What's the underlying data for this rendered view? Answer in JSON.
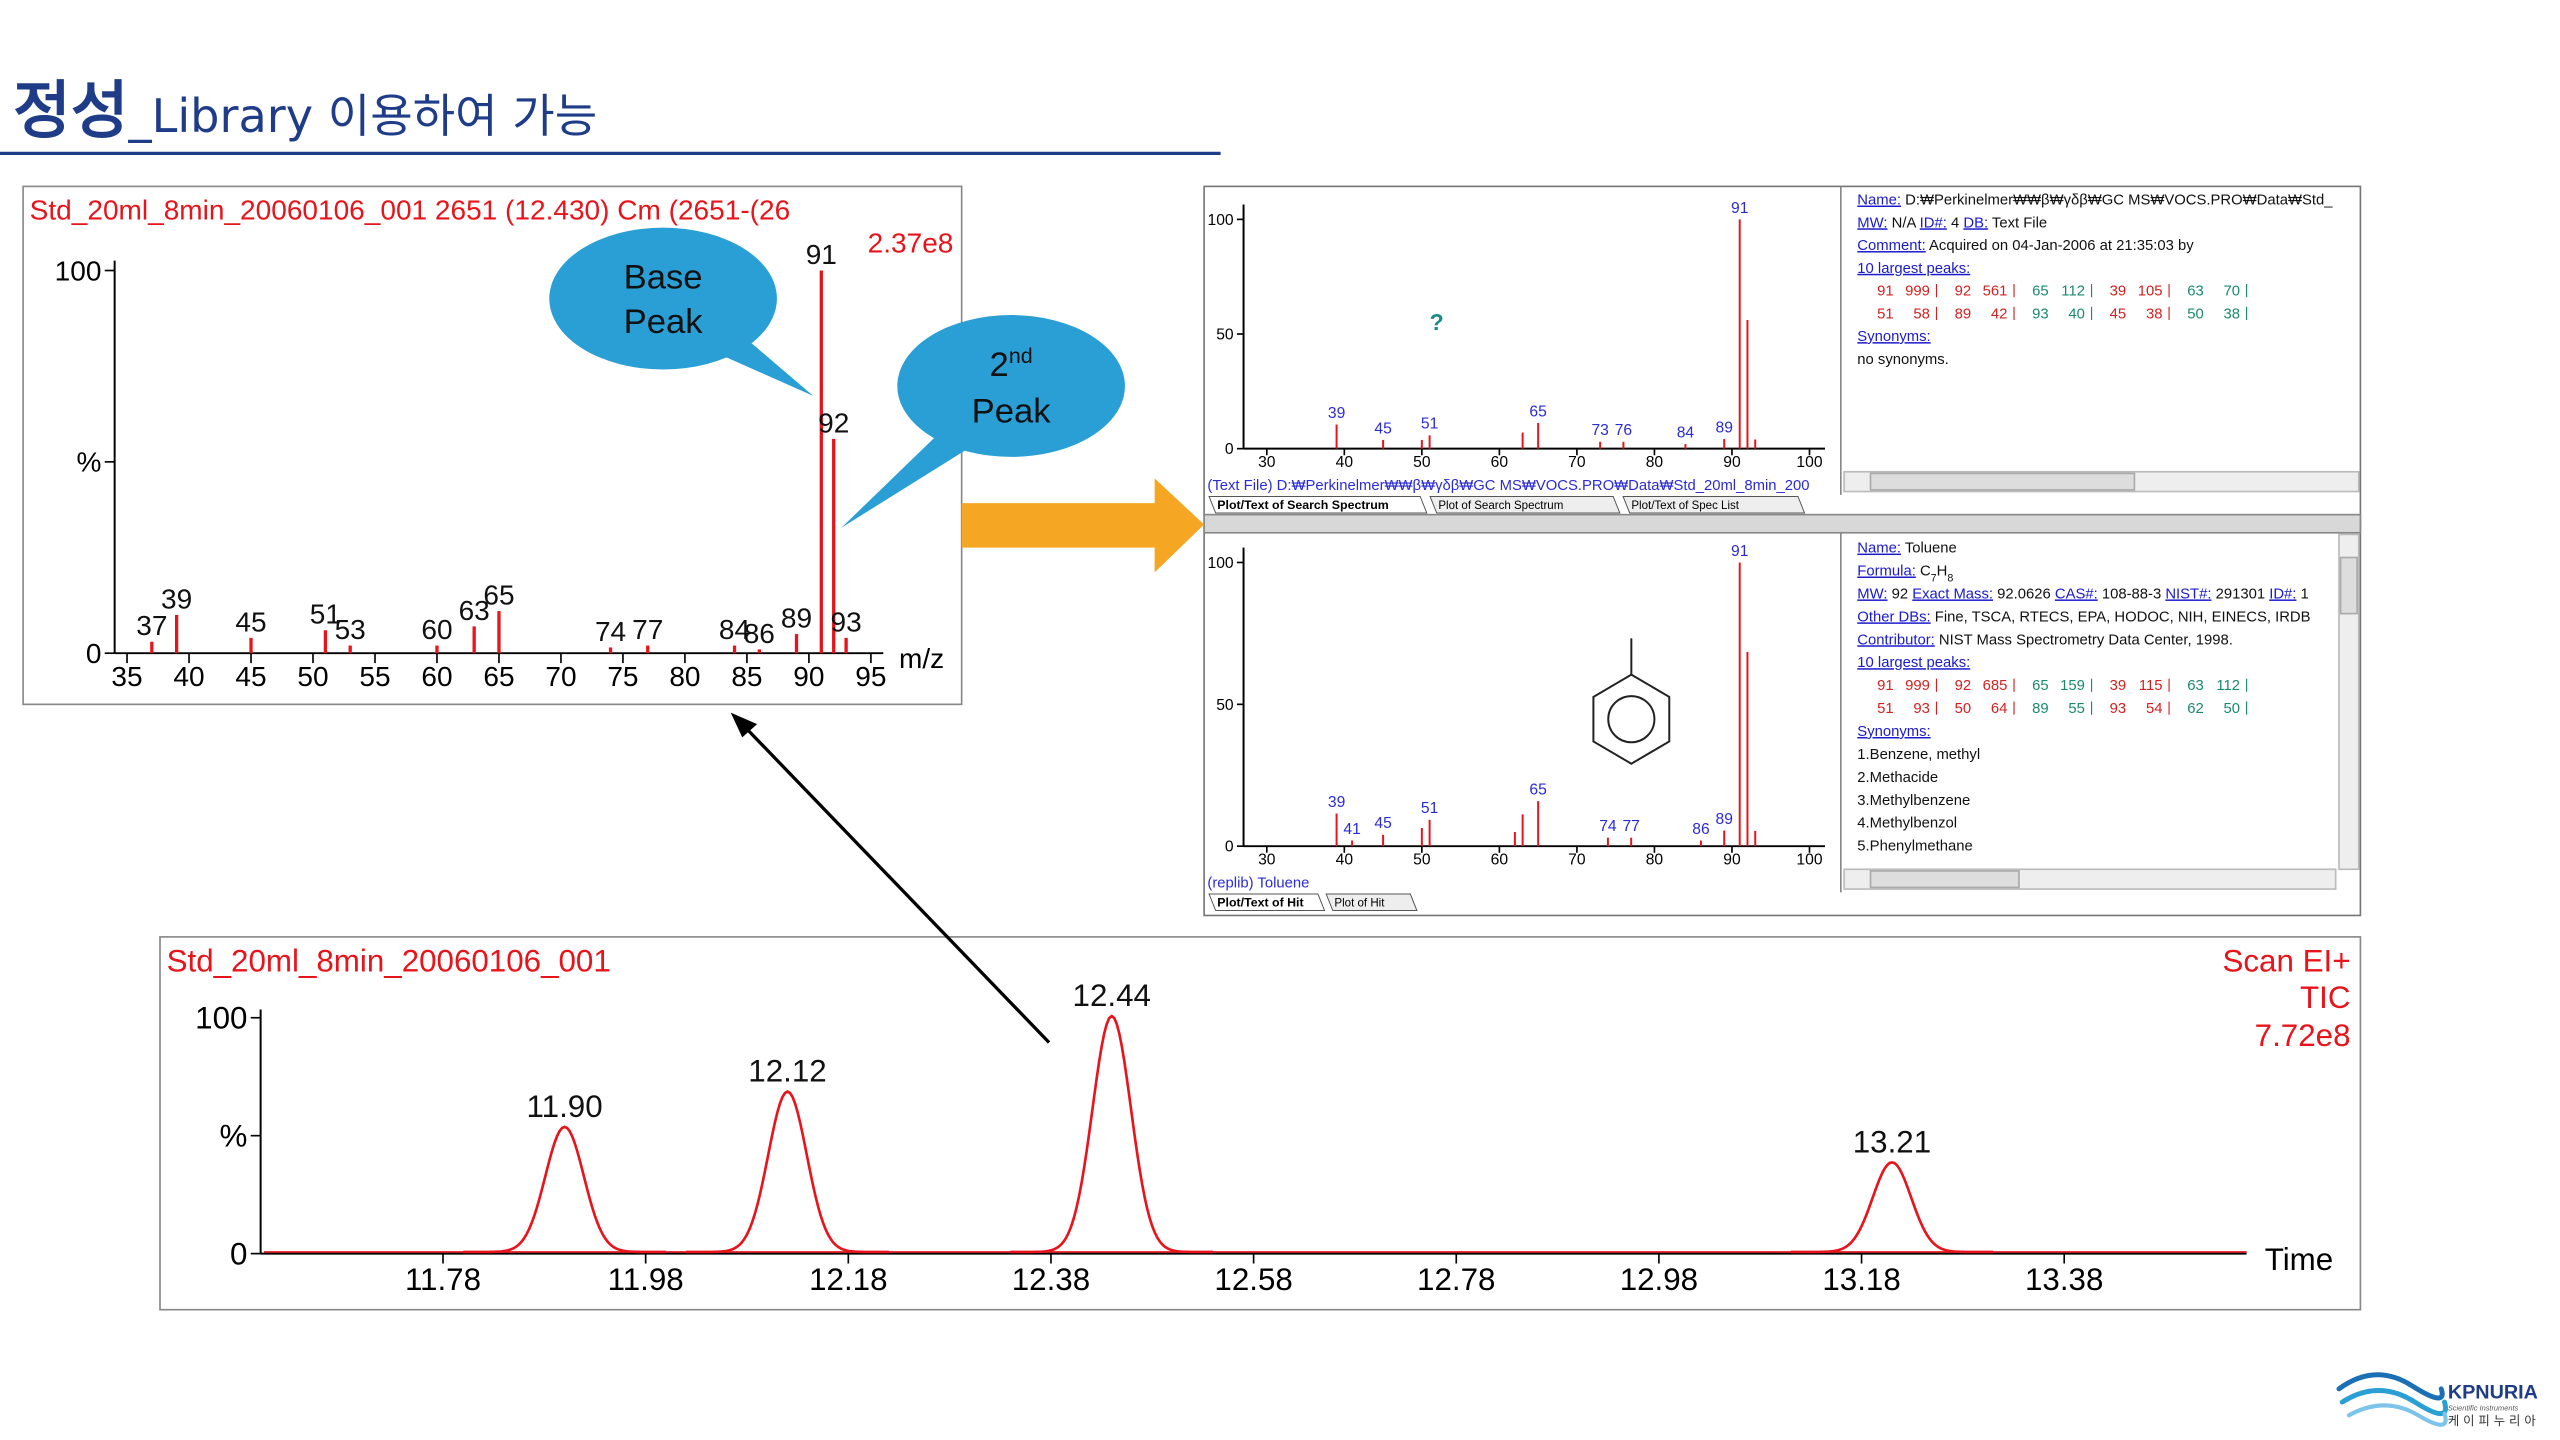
{
  "slide": {
    "title_main": "정성",
    "title_rest": "_Library 이용하여 가능"
  },
  "callouts": [
    {
      "lines": [
        "Base",
        "Peak"
      ]
    },
    {
      "number": "2",
      "sup": "nd",
      "line2": "Peak"
    }
  ],
  "chart_data": [
    {
      "type": "bar",
      "title": "Std_20ml_8min_20060106_001 2651 (12.430) Cm (2651-(26",
      "scale_label": "2.37e8",
      "x_label": "m/z",
      "color": "#e8141b",
      "x": [
        37,
        39,
        45,
        51,
        53,
        60,
        63,
        65,
        74,
        77,
        84,
        86,
        89,
        91,
        92,
        93
      ],
      "values": [
        3,
        10,
        4,
        6,
        2,
        2,
        7,
        11,
        1.5,
        2,
        2,
        1,
        5,
        100,
        56,
        4
      ],
      "xlim": [
        34,
        96
      ],
      "xticks": [
        35,
        40,
        45,
        50,
        55,
        60,
        65,
        70,
        75,
        80,
        85,
        90,
        95
      ],
      "ylim": [
        0,
        100
      ],
      "yticks": [
        0,
        {
          "value": 50,
          "label": "%"
        },
        100
      ]
    },
    {
      "type": "peak",
      "title": "Std_20ml_8min_20060106_001",
      "annotations": [
        "Scan EI+",
        "TIC",
        "7.72e8"
      ],
      "x_label": "Time",
      "color": "#e8141b",
      "x": [
        11.9,
        12.12,
        12.44,
        13.21
      ],
      "peak_labels": [
        "11.90",
        "12.12",
        "12.44",
        "13.21"
      ],
      "values": [
        53,
        68,
        100,
        38
      ],
      "xlim": [
        11.6,
        13.56
      ],
      "xticks": [
        11.78,
        11.98,
        12.18,
        12.38,
        12.58,
        12.78,
        12.98,
        13.18,
        13.38
      ],
      "ylim": [
        0,
        100
      ],
      "yticks": [
        0,
        {
          "value": 50,
          "label": "%"
        },
        100
      ]
    },
    {
      "type": "bar",
      "mark": "?",
      "color": "#e8141b",
      "label_color": "#2b2bd6",
      "x": [
        39,
        45,
        50,
        51,
        63,
        65,
        73,
        76,
        84,
        89,
        91,
        92,
        93
      ],
      "peak_labels": [
        "39",
        "45",
        null,
        "51",
        null,
        "65",
        "73",
        "76",
        "84",
        "89",
        "91",
        null,
        null
      ],
      "values": [
        10.5,
        3.8,
        3.8,
        5.8,
        7,
        11.2,
        3,
        3,
        2,
        4.2,
        100,
        56.1,
        4
      ],
      "xlim": [
        27,
        102
      ],
      "xticks": [
        30,
        40,
        50,
        60,
        70,
        80,
        90,
        100
      ],
      "ylim": [
        0,
        100
      ],
      "yticks": [
        0,
        50,
        100
      ]
    },
    {
      "type": "bar",
      "color": "#e8141b",
      "label_color": "#2b2bd6",
      "x": [
        39,
        41,
        45,
        50,
        51,
        62,
        63,
        65,
        74,
        77,
        86,
        89,
        91,
        92,
        93
      ],
      "peak_labels": [
        "39",
        "41",
        "45",
        null,
        "51",
        null,
        null,
        "65",
        "74",
        "77",
        "86",
        "89",
        "91",
        null,
        null
      ],
      "values": [
        11.5,
        2,
        4,
        6.4,
        9.3,
        5,
        11.2,
        15.9,
        3,
        3,
        2,
        5.5,
        100,
        68.5,
        5.4
      ],
      "xlim": [
        27,
        102
      ],
      "xticks": [
        30,
        40,
        50,
        60,
        70,
        80,
        90,
        100
      ],
      "ylim": [
        0,
        100
      ],
      "yticks": [
        0,
        50,
        100
      ]
    }
  ],
  "nist": {
    "search": {
      "caption": "(Text File) D:₩Perkinelmer₩₩β₩γδβ₩GC MS₩VOCS.PRO₩Data₩Std_20ml_8min_200",
      "tabs": [
        "Plot/Text of Search Spectrum",
        "Plot of Search Spectrum",
        "Plot/Text of Spec List"
      ],
      "info": [
        {
          "segments": [
            {
              "label": "Name:"
            },
            {
              "text": " D:₩Perkinelmer₩₩β₩γδβ₩GC MS₩VOCS.PRO₩Data₩Std_"
            }
          ]
        },
        {
          "segments": [
            {
              "label": "MW:"
            },
            {
              "text": " N/A "
            },
            {
              "label": "ID#:"
            },
            {
              "text": " 4 "
            },
            {
              "label": "DB:"
            },
            {
              "text": " Text File"
            }
          ]
        },
        {
          "segments": [
            {
              "label": "Comment:"
            },
            {
              "text": " Acquired on 04-Jan-2006 at 21:35:03 by"
            }
          ]
        },
        {
          "segments": [
            {
              "label": "10 largest peaks:"
            }
          ]
        },
        {
          "peaks": [
            [
              91,
              999
            ],
            [
              92,
              561
            ],
            [
              65,
              112
            ],
            [
              39,
              105
            ],
            [
              63,
              70
            ]
          ]
        },
        {
          "peaks": [
            [
              51,
              58
            ],
            [
              89,
              42
            ],
            [
              93,
              40
            ],
            [
              45,
              38
            ],
            [
              50,
              38
            ]
          ]
        },
        {
          "segments": [
            {
              "label": "Synonyms:"
            }
          ]
        },
        {
          "segments": [
            {
              "text": "no synonyms."
            }
          ]
        }
      ]
    },
    "hit": {
      "caption": "(replib) Toluene",
      "tabs": [
        "Plot/Text of Hit",
        "Plot of Hit"
      ],
      "info": [
        {
          "segments": [
            {
              "label": "Name:"
            },
            {
              "text": " Toluene"
            }
          ]
        },
        {
          "segments": [
            {
              "label": "Formula:"
            },
            {
              "text": " C"
            },
            {
              "sub": "7"
            },
            {
              "text": "H"
            },
            {
              "sub": "8"
            }
          ]
        },
        {
          "segments": [
            {
              "label": "MW:"
            },
            {
              "text": " 92 "
            },
            {
              "label": "Exact Mass:"
            },
            {
              "text": " 92.0626 "
            },
            {
              "label": "CAS#:"
            },
            {
              "text": " 108-88-3 "
            },
            {
              "label": "NIST#:"
            },
            {
              "text": " 291301 "
            },
            {
              "label": "ID#:"
            },
            {
              "text": " 1"
            }
          ]
        },
        {
          "segments": [
            {
              "label": "Other DBs:"
            },
            {
              "text": " Fine, TSCA, RTECS, EPA, HODOC, NIH, EINECS, IRDB"
            }
          ]
        },
        {
          "segments": [
            {
              "label": "Contributor:"
            },
            {
              "text": " NIST Mass Spectrometry Data Center, 1998."
            }
          ]
        },
        {
          "segments": [
            {
              "label": "10 largest peaks:"
            }
          ]
        },
        {
          "peaks": [
            [
              91,
              999
            ],
            [
              92,
              685
            ],
            [
              65,
              159
            ],
            [
              39,
              115
            ],
            [
              63,
              112
            ]
          ]
        },
        {
          "peaks": [
            [
              51,
              93
            ],
            [
              50,
              64
            ],
            [
              89,
              55
            ],
            [
              93,
              54
            ],
            [
              62,
              50
            ]
          ]
        },
        {
          "segments": [
            {
              "label": "Synonyms:"
            }
          ]
        },
        {
          "segments": [
            {
              "text": "1.Benzene, methyl"
            }
          ]
        },
        {
          "segments": [
            {
              "text": "2.Methacide"
            }
          ]
        },
        {
          "segments": [
            {
              "text": "3.Methylbenzene"
            }
          ]
        },
        {
          "segments": [
            {
              "text": "4.Methylbenzol"
            }
          ]
        },
        {
          "segments": [
            {
              "text": "5.Phenylmethane"
            }
          ]
        }
      ]
    }
  },
  "logo": {
    "name": "KPNURIA",
    "tagline": "Scientific Instruments",
    "korean": "케 이 피 누 리 아"
  }
}
